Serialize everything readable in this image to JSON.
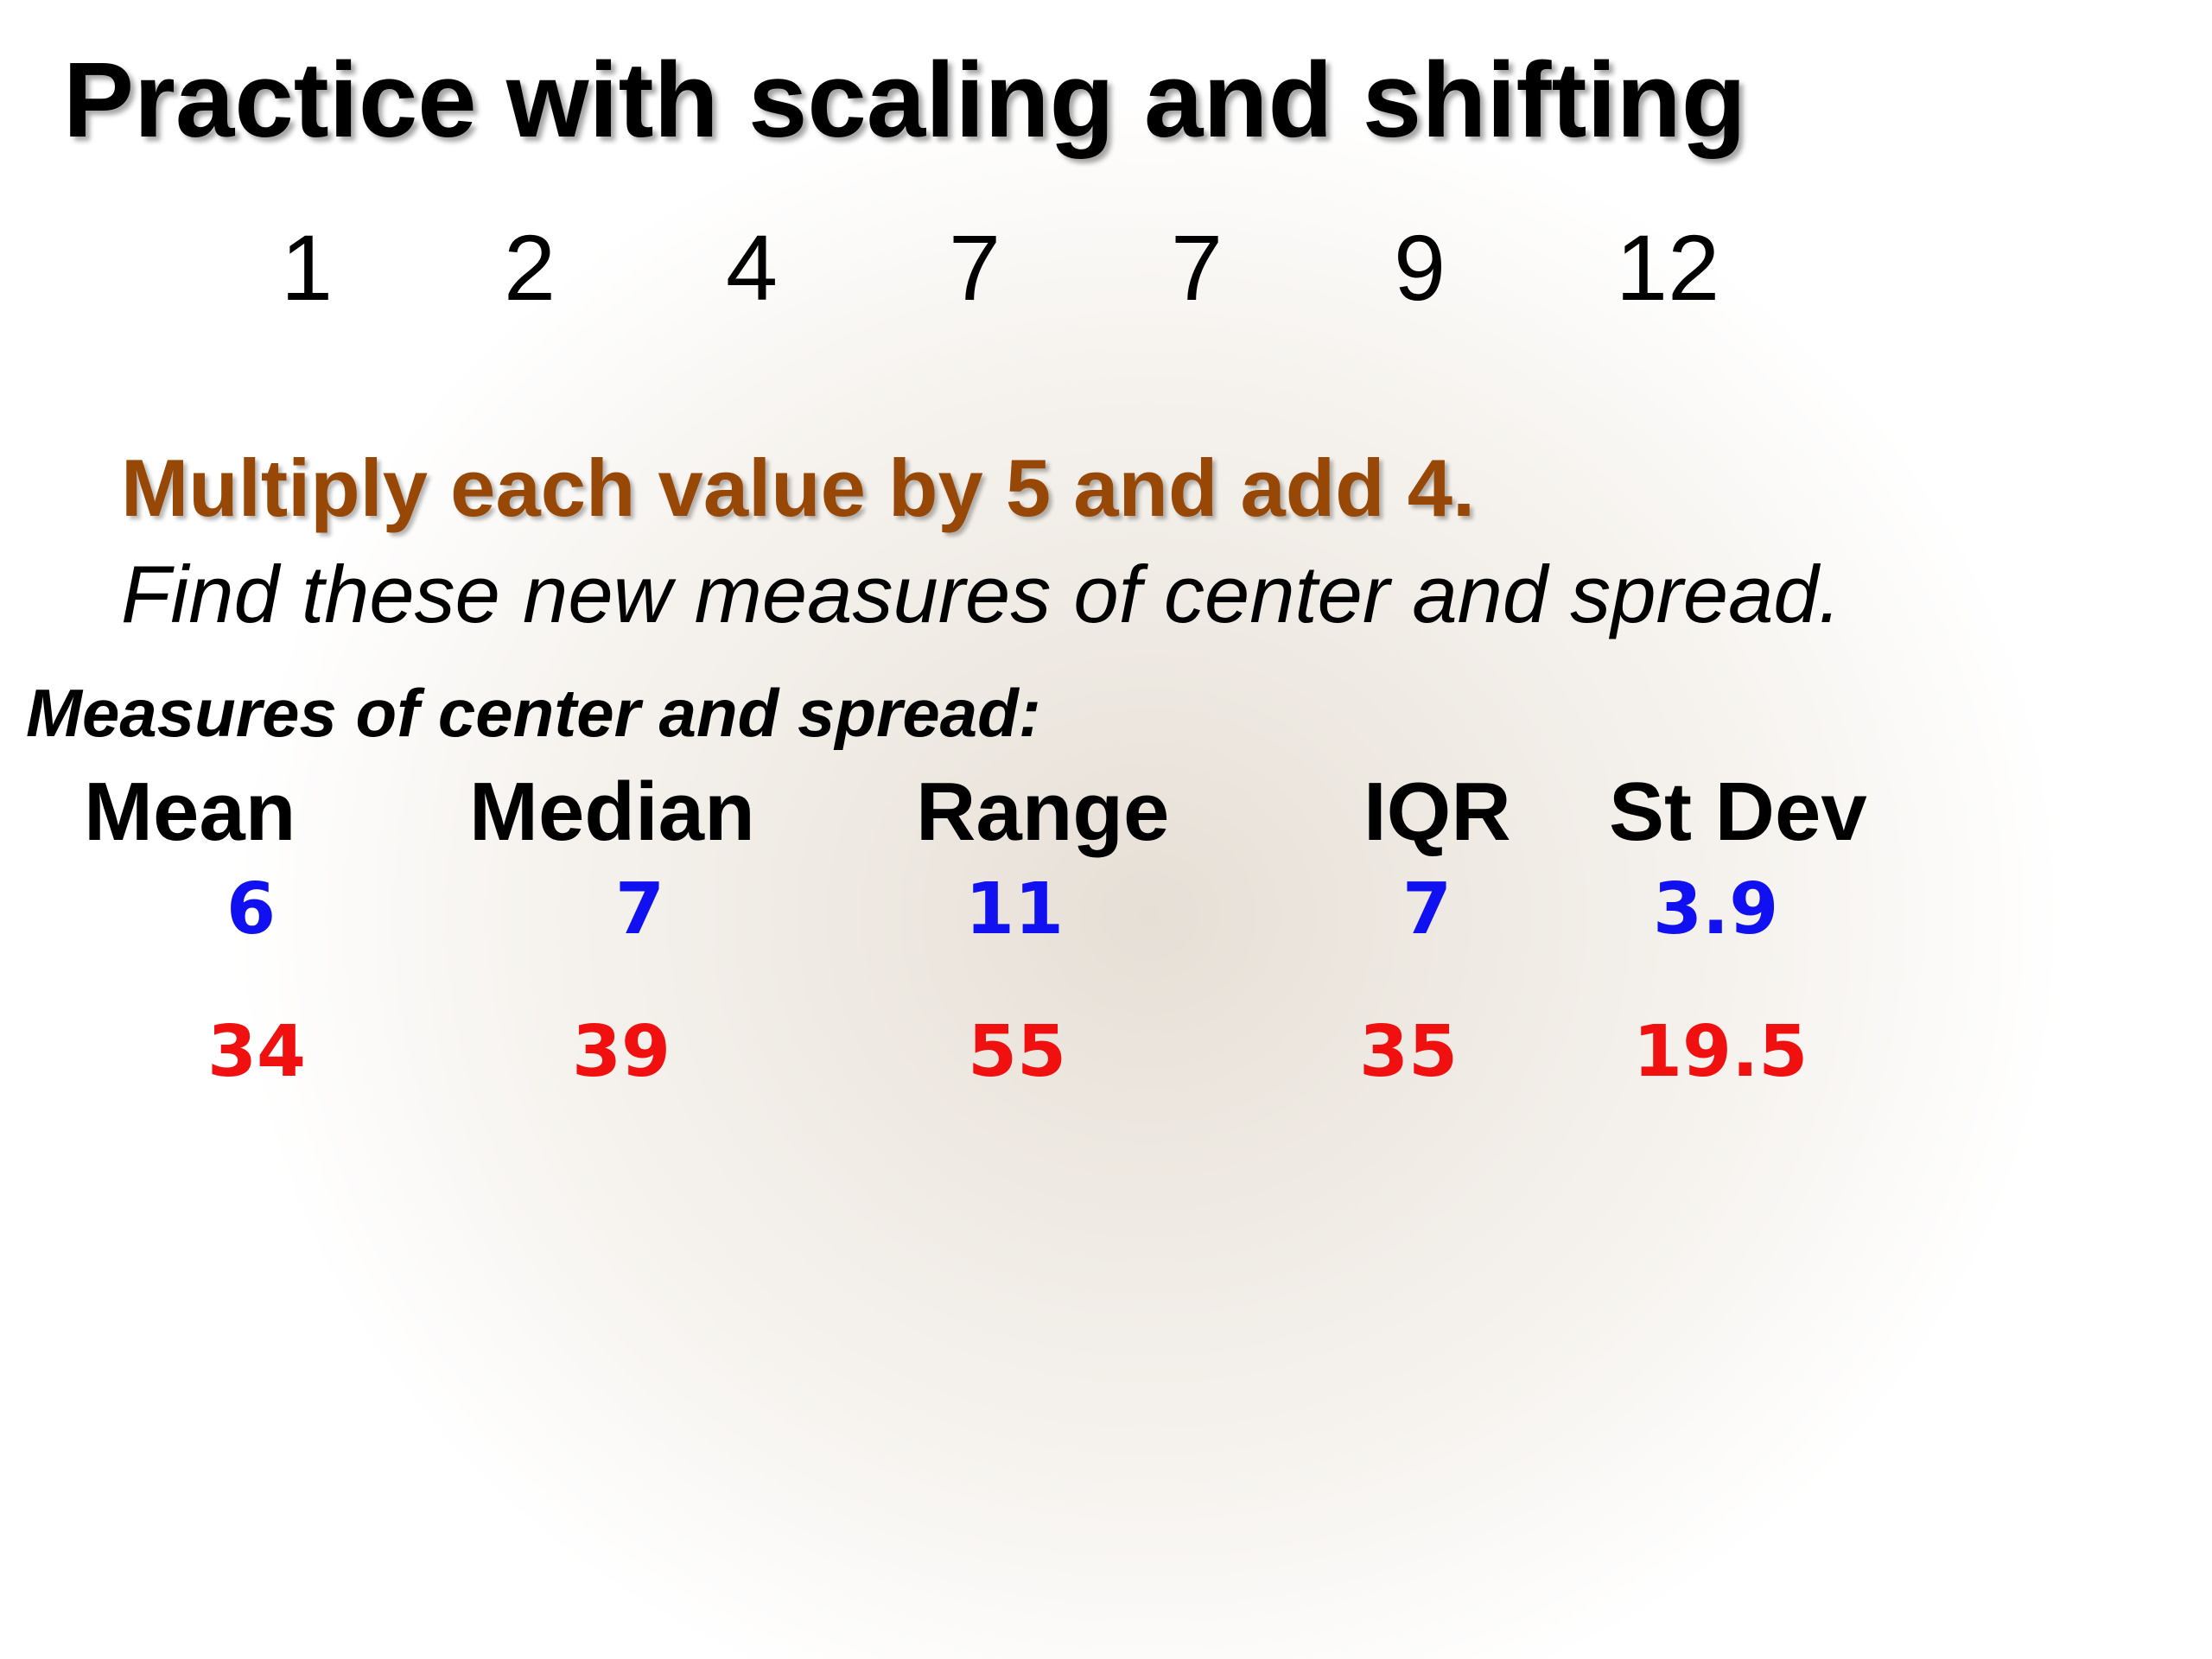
{
  "title": "Practice with scaling and shifting",
  "data_values": [
    "1",
    "2",
    "4",
    "7",
    "7",
    "9",
    "12"
  ],
  "instruction": "Multiply each value by 5 and add 4.",
  "task": "Find these new measures of center and spread.",
  "section_title": "Measures of center and spread:",
  "columns": [
    "Mean",
    "Median",
    "Range",
    "IQR",
    "St Dev"
  ],
  "original_measures": [
    "6",
    "7",
    "11",
    "7",
    "3.9"
  ],
  "new_measures": [
    "34",
    "39",
    "55",
    "35",
    "19.5"
  ],
  "colors": {
    "instruction": "#974806",
    "original": "#1010f0",
    "new": "#f01010",
    "text": "#000000"
  }
}
